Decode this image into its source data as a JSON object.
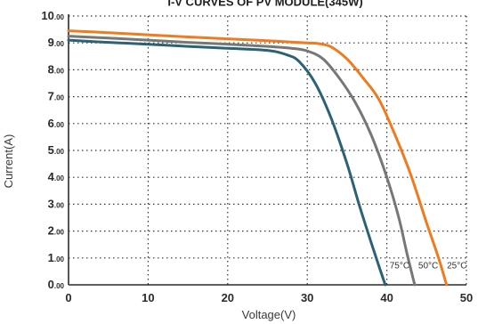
{
  "chart_data": {
    "type": "line",
    "title": "I-V CURVES OF PV MODULE(345W)",
    "xlabel": "Voltage(V)",
    "ylabel": "Current(A)",
    "xlim": [
      0,
      50
    ],
    "ylim": [
      0,
      10
    ],
    "x_ticks": [
      {
        "value": 0,
        "label": "0"
      },
      {
        "value": 10,
        "label": "10"
      },
      {
        "value": 20,
        "label": "20"
      },
      {
        "value": 30,
        "label": "30"
      },
      {
        "value": 40,
        "label": "40"
      },
      {
        "value": 50,
        "label": "50"
      }
    ],
    "y_ticks": [
      {
        "value": 0,
        "main": "0",
        "dec": ".00"
      },
      {
        "value": 1,
        "main": "1",
        "dec": ".00"
      },
      {
        "value": 2,
        "main": "2",
        "dec": ".00"
      },
      {
        "value": 3,
        "main": "3",
        "dec": ".00"
      },
      {
        "value": 4,
        "main": "4",
        "dec": ".00"
      },
      {
        "value": 5,
        "main": "5",
        "dec": ".00"
      },
      {
        "value": 6,
        "main": "6",
        "dec": ".00"
      },
      {
        "value": 7,
        "main": "7",
        "dec": ".00"
      },
      {
        "value": 8,
        "main": "8",
        "dec": ".00"
      },
      {
        "value": 9,
        "main": "9",
        "dec": ".00"
      },
      {
        "value": 10,
        "main": "10",
        "dec": ".00"
      }
    ],
    "grid": true,
    "series": [
      {
        "name": "25°C",
        "color": "#f07a1e",
        "x": [
          0,
          5,
          10,
          15,
          20,
          25,
          28,
          30,
          31.5,
          33,
          35,
          37,
          39,
          41,
          43,
          45,
          46.5,
          47.5
        ],
        "y": [
          9.45,
          9.38,
          9.3,
          9.22,
          9.15,
          9.08,
          9.03,
          9.0,
          8.97,
          8.85,
          8.4,
          7.7,
          6.9,
          5.6,
          4.1,
          2.3,
          1.0,
          0.0
        ]
      },
      {
        "name": "50°C",
        "color": "#777777",
        "x": [
          0,
          5,
          10,
          15,
          20,
          25,
          28,
          30,
          32,
          34,
          36,
          38,
          40,
          41.5,
          42.5,
          43.5
        ],
        "y": [
          9.25,
          9.18,
          9.1,
          9.02,
          8.95,
          8.87,
          8.8,
          8.7,
          8.4,
          7.7,
          6.8,
          5.6,
          4.0,
          2.5,
          1.2,
          0.0
        ]
      },
      {
        "name": "75°C",
        "color": "#2b6276",
        "x": [
          0,
          5,
          10,
          15,
          20,
          25,
          27.5,
          29,
          31,
          33,
          35,
          36.5,
          38,
          39,
          39.8
        ],
        "y": [
          9.1,
          9.02,
          8.95,
          8.87,
          8.8,
          8.72,
          8.55,
          8.3,
          7.5,
          6.2,
          4.5,
          3.0,
          1.6,
          0.7,
          0.0
        ]
      }
    ],
    "curve_labels": [
      {
        "text": "75°C",
        "x": 41.6,
        "y": 0.75
      },
      {
        "text": "50°C",
        "x": 45.2,
        "y": 0.75
      },
      {
        "text": "25°C",
        "x": 48.8,
        "y": 0.75
      }
    ]
  }
}
